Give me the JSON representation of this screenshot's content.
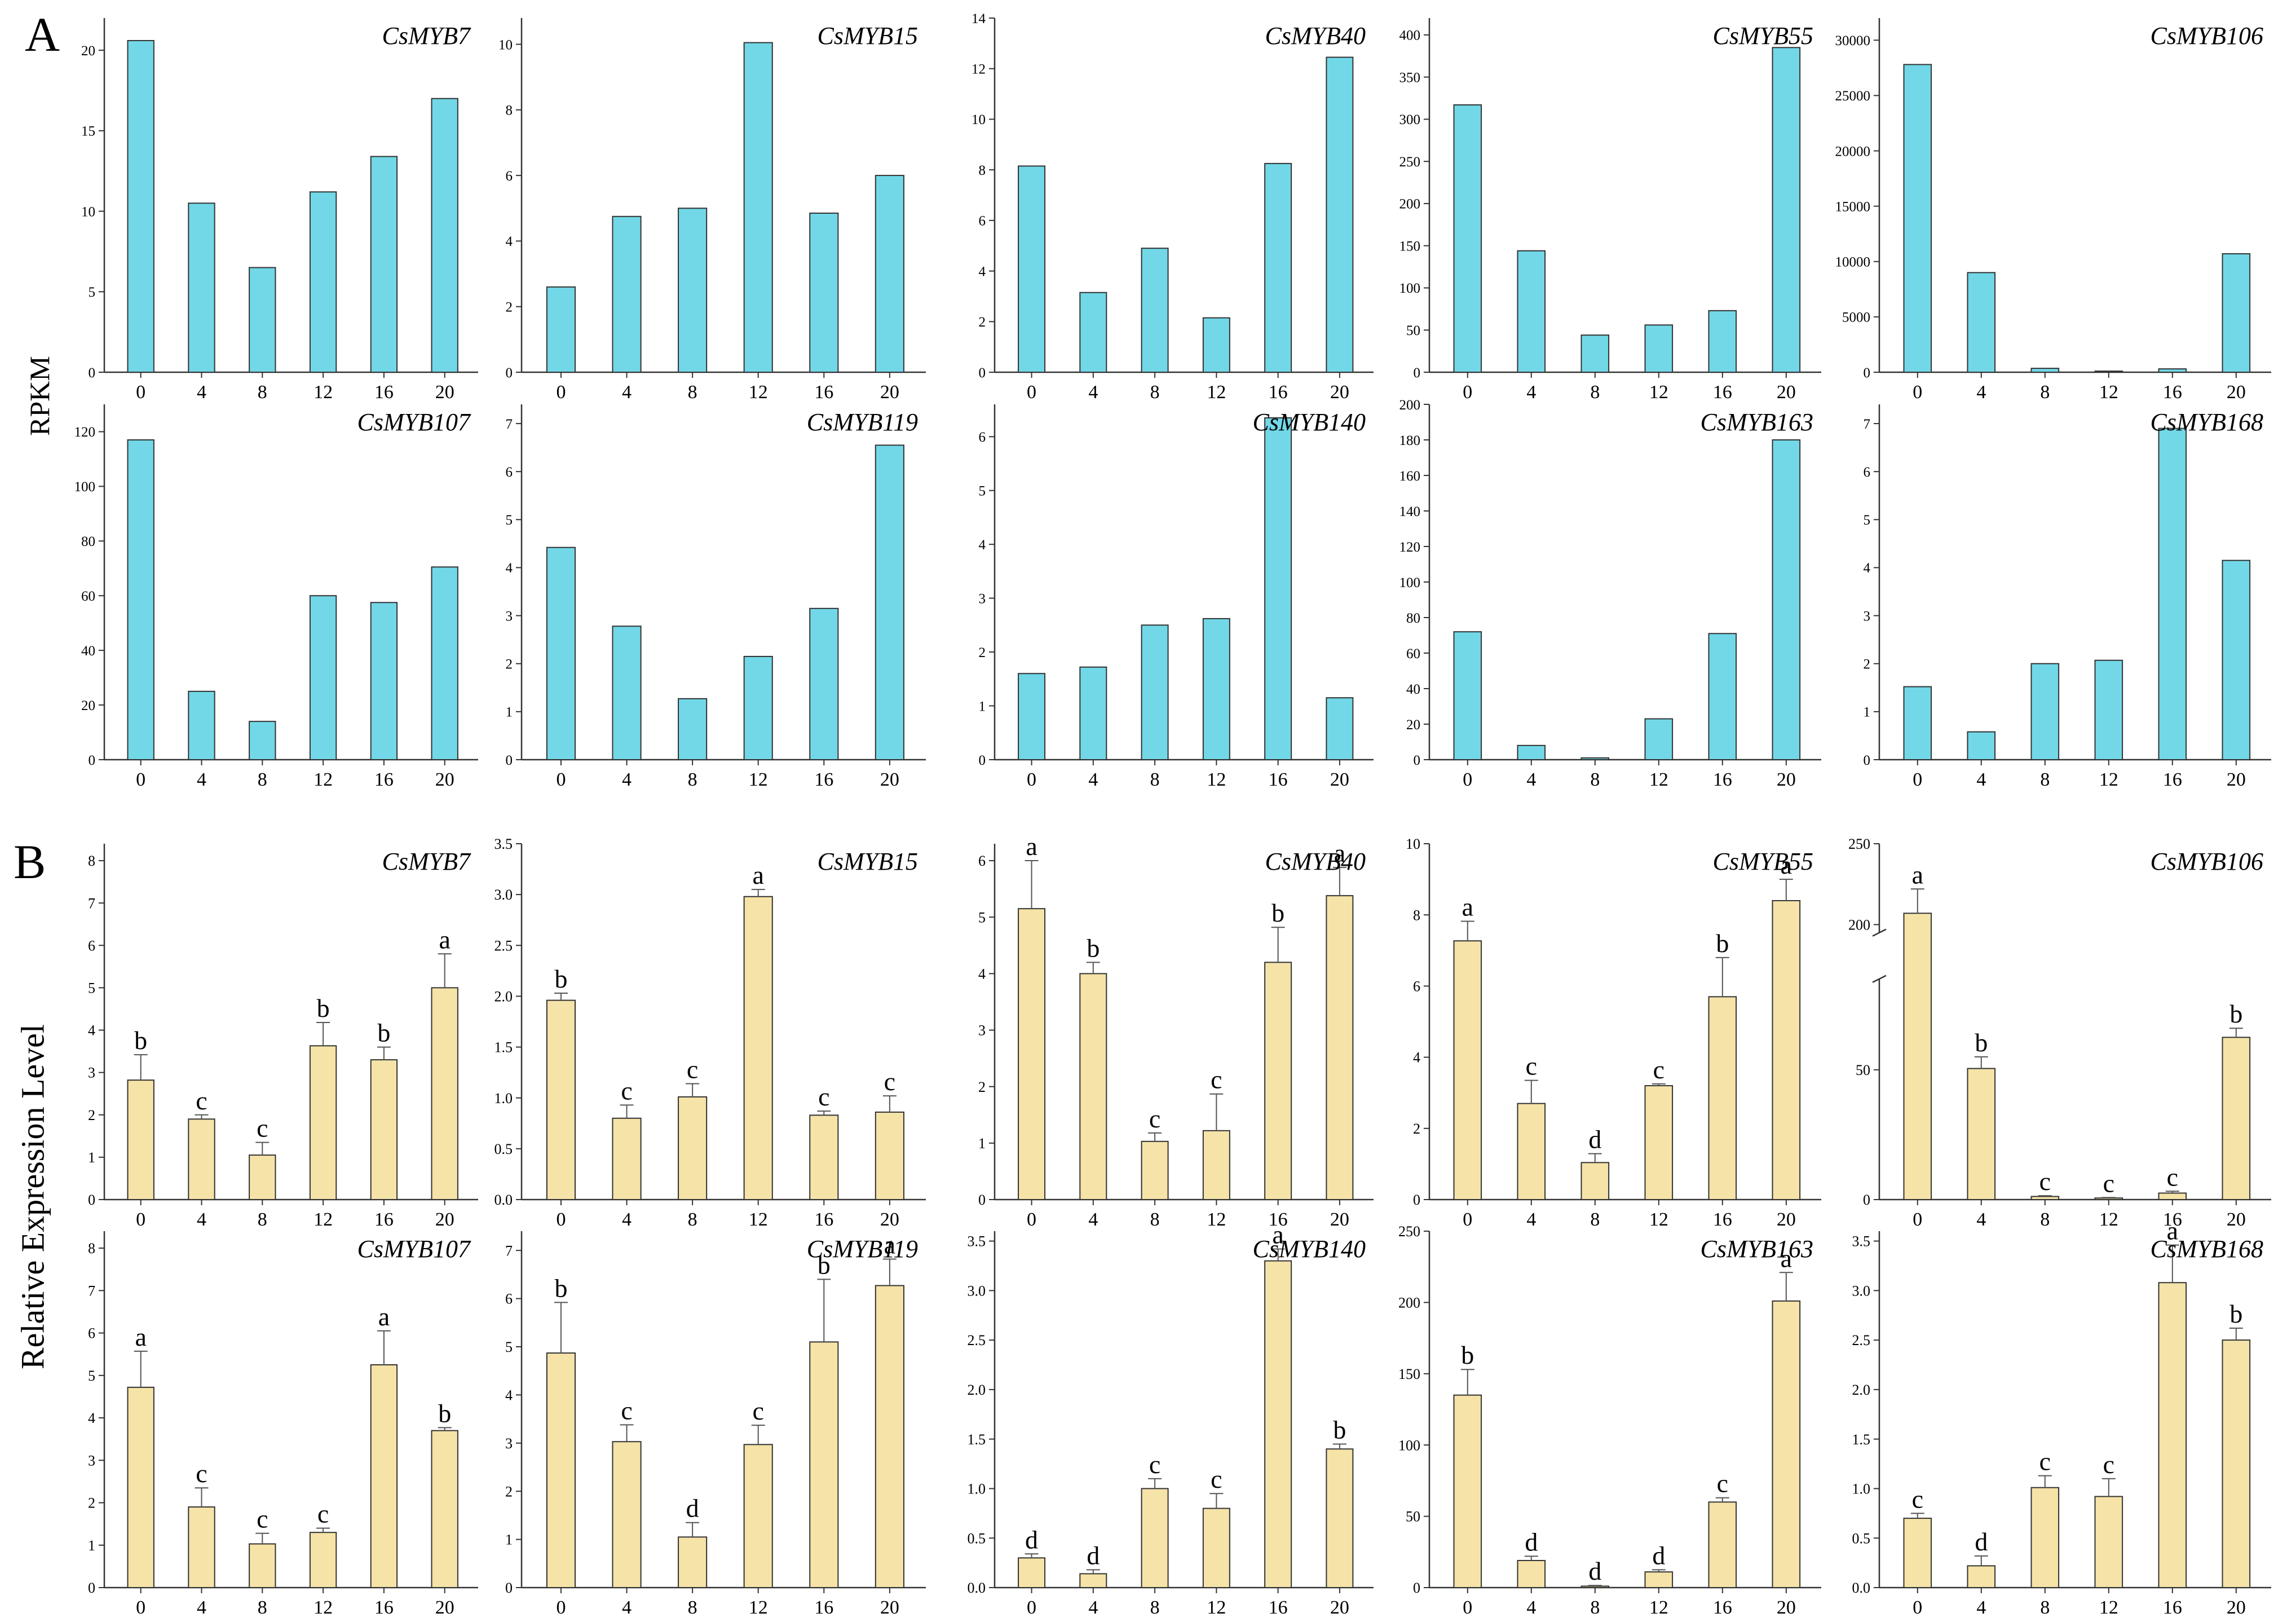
{
  "figure": {
    "panel_a_label": "A",
    "panel_b_label": "B",
    "panel_a_ylabel": "RPKM",
    "panel_b_ylabel": "Relative Expression Level",
    "rpkm_bar_color": "#72D8E8",
    "qpcr_bar_color": "#F5E3A8",
    "stroke_color": "#333333"
  },
  "chart_data": [
    {
      "panel": "A",
      "title": "CsMYB7",
      "type": "bar",
      "categories": [
        "0",
        "4",
        "8",
        "12",
        "16",
        "20"
      ],
      "values": [
        20.6,
        10.5,
        6.5,
        11.2,
        13.4,
        17.0
      ],
      "ylim": [
        0,
        22
      ],
      "yticks": [
        0,
        5,
        10,
        15,
        20
      ],
      "ylabel": "RPKM"
    },
    {
      "panel": "A",
      "title": "CsMYB15",
      "type": "bar",
      "categories": [
        "0",
        "4",
        "8",
        "12",
        "16",
        "20"
      ],
      "values": [
        2.6,
        4.75,
        5.0,
        10.05,
        4.85,
        6.0
      ],
      "ylim": [
        0,
        10.8
      ],
      "yticks": [
        0,
        2,
        4,
        6,
        8,
        10
      ],
      "ylabel": "RPKM"
    },
    {
      "panel": "A",
      "title": "CsMYB40",
      "type": "bar",
      "categories": [
        "0",
        "4",
        "8",
        "12",
        "16",
        "20"
      ],
      "values": [
        8.15,
        3.15,
        4.9,
        2.15,
        8.25,
        12.45
      ],
      "ylim": [
        0,
        14
      ],
      "yticks": [
        0,
        2,
        4,
        6,
        8,
        10,
        12,
        14
      ],
      "ylabel": "RPKM"
    },
    {
      "panel": "A",
      "title": "CsMYB55",
      "type": "bar",
      "categories": [
        "0",
        "4",
        "8",
        "12",
        "16",
        "20"
      ],
      "values": [
        317,
        144,
        44,
        56,
        73,
        385
      ],
      "ylim": [
        0,
        420
      ],
      "yticks": [
        0,
        50,
        100,
        150,
        200,
        250,
        300,
        350,
        400
      ],
      "ylabel": "RPKM"
    },
    {
      "panel": "A",
      "title": "CsMYB106",
      "type": "bar",
      "categories": [
        "0",
        "4",
        "8",
        "12",
        "16",
        "20"
      ],
      "values": [
        27800,
        9000,
        350,
        100,
        300,
        10700
      ],
      "ylim": [
        0,
        32000
      ],
      "yticks": [
        0,
        5000,
        10000,
        15000,
        20000,
        25000,
        30000
      ],
      "ylabel": "RPKM"
    },
    {
      "panel": "A",
      "title": "CsMYB107",
      "type": "bar",
      "categories": [
        "0",
        "4",
        "8",
        "12",
        "16",
        "20"
      ],
      "values": [
        117,
        25,
        14,
        60,
        57.5,
        70.5
      ],
      "ylim": [
        0,
        130
      ],
      "yticks": [
        0,
        20,
        40,
        60,
        80,
        100,
        120
      ],
      "ylabel": "RPKM"
    },
    {
      "panel": "A",
      "title": "CsMYB119",
      "type": "bar",
      "categories": [
        "0",
        "4",
        "8",
        "12",
        "16",
        "20"
      ],
      "values": [
        4.42,
        2.78,
        1.27,
        2.15,
        3.15,
        6.55
      ],
      "ylim": [
        0,
        7.4
      ],
      "yticks": [
        0,
        1,
        2,
        3,
        4,
        5,
        6,
        7
      ],
      "ylabel": "RPKM"
    },
    {
      "panel": "A",
      "title": "CsMYB140",
      "type": "bar",
      "categories": [
        "0",
        "4",
        "8",
        "12",
        "16",
        "20"
      ],
      "values": [
        1.6,
        1.72,
        2.5,
        2.62,
        6.35,
        1.15
      ],
      "ylim": [
        0,
        6.6
      ],
      "yticks": [
        0,
        1,
        2,
        3,
        4,
        5,
        6
      ],
      "ylabel": "RPKM"
    },
    {
      "panel": "A",
      "title": "CsMYB163",
      "type": "bar",
      "categories": [
        "0",
        "4",
        "8",
        "12",
        "16",
        "20"
      ],
      "values": [
        72,
        8,
        1,
        23,
        71,
        180
      ],
      "ylim": [
        0,
        200
      ],
      "yticks": [
        0,
        20,
        40,
        60,
        80,
        100,
        120,
        140,
        160,
        180,
        200
      ],
      "ylabel": "RPKM"
    },
    {
      "panel": "A",
      "title": "CsMYB168",
      "type": "bar",
      "categories": [
        "0",
        "4",
        "8",
        "12",
        "16",
        "20"
      ],
      "values": [
        1.52,
        0.58,
        2.0,
        2.07,
        6.9,
        4.15
      ],
      "ylim": [
        0,
        7.4
      ],
      "yticks": [
        0,
        1,
        2,
        3,
        4,
        5,
        6,
        7
      ],
      "ylabel": "RPKM"
    },
    {
      "panel": "B",
      "title": "CsMYB7",
      "type": "bar",
      "categories": [
        "0",
        "4",
        "8",
        "12",
        "16",
        "20"
      ],
      "values": [
        2.82,
        1.9,
        1.05,
        3.63,
        3.3,
        5.0
      ],
      "errors": [
        0.6,
        0.1,
        0.3,
        0.55,
        0.3,
        0.8
      ],
      "letters": [
        "b",
        "c",
        "c",
        "b",
        "b",
        "a"
      ],
      "ylim": [
        0,
        8.4
      ],
      "yticks": [
        0,
        1,
        2,
        3,
        4,
        5,
        6,
        7,
        8
      ],
      "ylabel": "Relative Expression Level"
    },
    {
      "panel": "B",
      "title": "CsMYB15",
      "type": "bar",
      "categories": [
        "0",
        "4",
        "8",
        "12",
        "16",
        "20"
      ],
      "values": [
        1.96,
        0.8,
        1.01,
        2.98,
        0.83,
        0.86
      ],
      "errors": [
        0.07,
        0.13,
        0.13,
        0.07,
        0.04,
        0.16
      ],
      "letters": [
        "b",
        "c",
        "c",
        "a",
        "c",
        "c"
      ],
      "ylim": [
        0,
        3.5
      ],
      "yticks": [
        0,
        0.5,
        1.0,
        1.5,
        2.0,
        2.5,
        3.0,
        3.5
      ],
      "ylabel": "Relative Expression Level"
    },
    {
      "panel": "B",
      "title": "CsMYB40",
      "type": "bar",
      "categories": [
        "0",
        "4",
        "8",
        "12",
        "16",
        "20"
      ],
      "values": [
        5.15,
        4.0,
        1.03,
        1.22,
        4.2,
        5.38
      ],
      "errors": [
        0.85,
        0.2,
        0.15,
        0.65,
        0.62,
        0.5
      ],
      "letters": [
        "a",
        "b",
        "c",
        "c",
        "b",
        "a"
      ],
      "ylim": [
        0,
        6.3
      ],
      "yticks": [
        0,
        1,
        2,
        3,
        4,
        5,
        6
      ],
      "ylabel": "Relative Expression Level"
    },
    {
      "panel": "B",
      "title": "CsMYB55",
      "type": "bar",
      "categories": [
        "0",
        "4",
        "8",
        "12",
        "16",
        "20"
      ],
      "values": [
        7.27,
        2.7,
        1.04,
        3.2,
        5.7,
        8.4
      ],
      "errors": [
        0.55,
        0.65,
        0.25,
        0.05,
        1.1,
        0.6
      ],
      "letters": [
        "a",
        "c",
        "d",
        "c",
        "b",
        "a"
      ],
      "ylim": [
        0,
        10
      ],
      "yticks": [
        0,
        2,
        4,
        6,
        8,
        10
      ],
      "ylabel": "Relative Expression Level"
    },
    {
      "panel": "B",
      "title": "CsMYB106",
      "type": "bar",
      "categories": [
        "0",
        "4",
        "8",
        "12",
        "16",
        "20"
      ],
      "values": [
        207,
        50.5,
        1.2,
        0.6,
        2.5,
        62.5
      ],
      "errors": [
        15,
        4.5,
        0.3,
        0.2,
        0.7,
        3.5
      ],
      "letters": [
        "a",
        "b",
        "c",
        "c",
        "c",
        "b"
      ],
      "yticks": [
        0,
        50,
        200,
        250
      ],
      "axis_break": {
        "lower_range": [
          0,
          85
        ],
        "upper_range": [
          195,
          250
        ]
      },
      "ylabel": "Relative Expression Level"
    },
    {
      "panel": "B",
      "title": "CsMYB107",
      "type": "bar",
      "categories": [
        "0",
        "4",
        "8",
        "12",
        "16",
        "20"
      ],
      "values": [
        4.72,
        1.9,
        1.03,
        1.3,
        5.25,
        3.7
      ],
      "errors": [
        0.85,
        0.45,
        0.25,
        0.1,
        0.8,
        0.07
      ],
      "letters": [
        "a",
        "c",
        "c",
        "c",
        "a",
        "b"
      ],
      "ylim": [
        0,
        8.4
      ],
      "yticks": [
        0,
        1,
        2,
        3,
        4,
        5,
        6,
        7,
        8
      ],
      "ylabel": "Relative Expression Level"
    },
    {
      "panel": "B",
      "title": "CsMYB119",
      "type": "bar",
      "categories": [
        "0",
        "4",
        "8",
        "12",
        "16",
        "20"
      ],
      "values": [
        4.87,
        3.03,
        1.05,
        2.97,
        5.1,
        6.27
      ],
      "errors": [
        1.05,
        0.35,
        0.3,
        0.4,
        1.3,
        0.55
      ],
      "letters": [
        "b",
        "c",
        "d",
        "c",
        "b",
        "a"
      ],
      "ylim": [
        0,
        7.4
      ],
      "yticks": [
        0,
        1,
        2,
        3,
        4,
        5,
        6,
        7
      ],
      "ylabel": "Relative Expression Level"
    },
    {
      "panel": "B",
      "title": "CsMYB140",
      "type": "bar",
      "categories": [
        "0",
        "4",
        "8",
        "12",
        "16",
        "20"
      ],
      "values": [
        0.3,
        0.14,
        1.0,
        0.8,
        3.3,
        1.4
      ],
      "errors": [
        0.04,
        0.04,
        0.1,
        0.15,
        0.12,
        0.05
      ],
      "letters": [
        "d",
        "d",
        "c",
        "c",
        "a",
        "b"
      ],
      "ylim": [
        0,
        3.6
      ],
      "yticks": [
        0,
        0.5,
        1.0,
        1.5,
        2.0,
        2.5,
        3.0,
        3.5
      ],
      "ylabel": "Relative Expression Level"
    },
    {
      "panel": "B",
      "title": "CsMYB163",
      "type": "bar",
      "categories": [
        "0",
        "4",
        "8",
        "12",
        "16",
        "20"
      ],
      "values": [
        135,
        19,
        1,
        11,
        60,
        201
      ],
      "errors": [
        18,
        3,
        0.5,
        1.5,
        3,
        20
      ],
      "letters": [
        "b",
        "d",
        "d",
        "d",
        "c",
        "a"
      ],
      "ylim": [
        0,
        250
      ],
      "yticks": [
        0,
        50,
        100,
        150,
        200,
        250
      ],
      "ylabel": "Relative Expression Level"
    },
    {
      "panel": "B",
      "title": "CsMYB168",
      "type": "bar",
      "categories": [
        "0",
        "4",
        "8",
        "12",
        "16",
        "20"
      ],
      "values": [
        0.7,
        0.22,
        1.01,
        0.92,
        3.08,
        2.5
      ],
      "errors": [
        0.05,
        0.1,
        0.12,
        0.18,
        0.38,
        0.12
      ],
      "letters": [
        "c",
        "d",
        "c",
        "c",
        "a",
        "b"
      ],
      "ylim": [
        0,
        3.6
      ],
      "yticks": [
        0,
        0.5,
        1.0,
        1.5,
        2.0,
        2.5,
        3.0,
        3.5
      ],
      "ylabel": "Relative Expression Level"
    }
  ]
}
